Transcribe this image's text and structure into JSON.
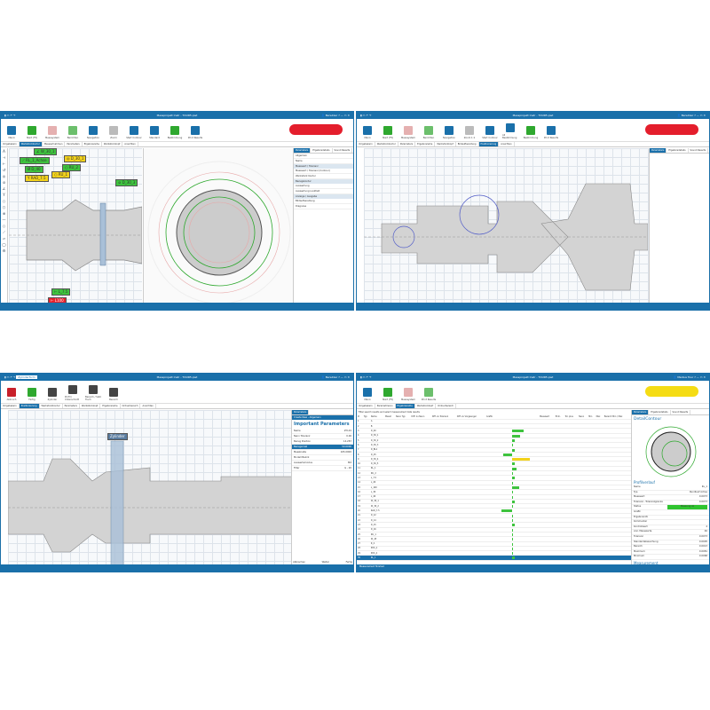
{
  "windows": [
    {
      "title": "Messprojekt Instr - TOUR5.pwt",
      "user": "Benutzer",
      "ribbon": [
        "Menü",
        "Start (F5)",
        "Messsystem",
        "Berichten",
        "Navigation",
        "Zoom",
        "Start Contour",
        "Standard",
        "Bestimmung",
        "Print Results"
      ],
      "tabs": [
        "Vorgabekern",
        "Werkstückkontur",
        "Messaufnahmen",
        "Parameters",
        "Ergebnisreihe",
        "Werkstückkopf",
        "Ansichten"
      ],
      "active_tab": 1,
      "tags": [
        {
          "t": "∠ W_30_1",
          "c": "g"
        },
        {
          "t": "⟋ RL_1_Achse",
          "c": "g"
        },
        {
          "t": "Ø D_40",
          "c": "g"
        },
        {
          "t": "◎ D_30_1",
          "c": "y"
        },
        {
          "t": "○ RU_2",
          "c": "g"
        },
        {
          "t": "○ RU_1",
          "c": "y"
        },
        {
          "t": "Y RAD_7.5",
          "c": "y"
        },
        {
          "t": "⊘ D_30_3",
          "c": "g"
        },
        {
          "t": "⊢ L_7.5",
          "c": "g"
        },
        {
          "t": "⊢ L100",
          "c": "rd"
        }
      ],
      "panel": {
        "tabs": [
          "Parameters",
          "Ergebnisdetails",
          "Sound Results"
        ],
        "sections": [
          "Allgemein",
          "Name",
          "Messwert / Toleranz",
          "Messwert / Toleranz (Contour)",
          "Werkstück Kontur",
          "Bezugskontur",
          "Auswertung",
          "Auswertung Lookfeld",
          "Anzeige / Ausgabe",
          "Bildaufbereitung",
          "Diagnose"
        ]
      }
    },
    {
      "title": "Messprojekt Instr - TOUR5.pwt",
      "user": "Benutzer",
      "ribbon": [
        "Menü",
        "Start (F5)",
        "Messsystem",
        "Berichten",
        "Navigation",
        "Zoom 1:1",
        "Start Contour",
        "All Bestimmung",
        "Bestimmung",
        "Print Results"
      ],
      "tabs": [
        "Vorgabekern",
        "Werkstückkontur",
        "Parameters",
        "Ergebnisreihe",
        "Werkstückkopf",
        "Bildaufbereitung",
        "Positionierung",
        "Ansichten"
      ],
      "active_tab": 6,
      "panel": {
        "tabs": [
          "Parameters",
          "Ergebnisdetails",
          "Sound Results"
        ]
      }
    },
    {
      "title": "Messprojekt Instr - TOUR5.pwt",
      "user": "Benutzer",
      "context_tab": "Zylinderform",
      "ribbon": [
        "Abbruch",
        "Fertig",
        "Zylinder",
        "Profil / Unterschnitt",
        "Bereich / Satz Tisch",
        "Bereich"
      ],
      "tabs": [
        "Vorgabekern",
        "Positionierung",
        "Werkstückkontur",
        "Parameters",
        "Werkstückkopf",
        "Ergebnisreihe",
        "Ordnerbereich",
        "Ansichten"
      ],
      "active_tab": 1,
      "zone_label": "Zylinder",
      "panel": {
        "tab": "Parameters",
        "header": "Create New - Allgemein",
        "title": "Important Parameters",
        "rows": [
          [
            "Name",
            "ZYL01"
          ],
          [
            "Nenn Toleranz",
            "0.00"
          ],
          [
            "Bezug Position",
            "14.287"
          ],
          [
            "Bezugsmaß",
            "50.0000"
          ],
          [
            "Messbreite",
            "165.0000"
          ],
          [
            "Modell Bezirk",
            ""
          ],
          [
            "Auswertemodus",
            "Mit"
          ],
          [
            "Filter",
            "G - 20"
          ]
        ],
        "footer": [
          "Abbrechen",
          "Weiter",
          "Fertig"
        ]
      }
    },
    {
      "title": "Messprojekt Instr - TOUR5.pwt",
      "user": "Markus Tour",
      "ribbon": [
        "Menü",
        "Start (F5)",
        "Messsystem",
        "Print Results"
      ],
      "tabs": [
        "Vorgabekern",
        "Parametrieren",
        "Ergebnisreihe",
        "Werkstückkopf",
        "Ordnerbereich"
      ],
      "active_tab": 2,
      "table": {
        "caption": "Filter search results and select measurement data results",
        "headers": [
          "#",
          "Typ",
          "Name",
          "Messt",
          "Nenn Typ",
          "Diff. zu Nenn",
          "Diff. zu Toleranz",
          "Diff. zu Vorgaenger",
          "Grafik",
          "Messwert",
          "Einh.",
          "Tol. plus",
          "Nenn",
          "Min",
          "Max",
          "Bereich Min / Max"
        ],
        "rows": [
          {
            "n": "1",
            "name": "A",
            "bar": 0.0
          },
          {
            "n": "2",
            "name": "B",
            "bar": 0.0
          },
          {
            "n": "3",
            "name": "D_40",
            "bar": 0.5
          },
          {
            "n": "4",
            "name": "D_30_1",
            "bar": 0.35
          },
          {
            "n": "5",
            "name": "D_30_2",
            "bar": 0.1
          },
          {
            "n": "6",
            "name": "D_30_3",
            "bar": 0.05
          },
          {
            "n": "7",
            "name": "D_BL1",
            "bar": 0.1
          },
          {
            "n": "8",
            "name": "D_25",
            "bar": -0.4
          },
          {
            "n": "9",
            "name": "D_30_4",
            "bar": 0.8
          },
          {
            "n": "10",
            "name": "D_30_5",
            "bar": 0.1
          },
          {
            "n": "11",
            "name": "RL_1",
            "bar": 0.2
          },
          {
            "n": "12",
            "name": "RU_2",
            "bar": 0.05
          },
          {
            "n": "13",
            "name": "L_7.5",
            "bar": 0.1
          },
          {
            "n": "14",
            "name": "L_20",
            "bar": 0.05
          },
          {
            "n": "15",
            "name": "L_100",
            "bar": 0.3
          },
          {
            "n": "16",
            "name": "L_30",
            "bar": 0.05
          },
          {
            "n": "17",
            "name": "L_40",
            "bar": 0.05
          },
          {
            "n": "18",
            "name": "W_30_1",
            "bar": 0.1
          },
          {
            "n": "19",
            "name": "W_30_2",
            "bar": 0.05
          },
          {
            "n": "20",
            "name": "RAD_7.5",
            "bar": -0.5
          },
          {
            "n": "21",
            "name": "D_12",
            "bar": 0.05
          },
          {
            "n": "22",
            "name": "D_14",
            "bar": 0.05
          },
          {
            "n": "23",
            "name": "D_15",
            "bar": 0.1
          },
          {
            "n": "24",
            "name": "D_16",
            "bar": 0.05
          },
          {
            "n": "25",
            "name": "RU_1",
            "bar": 0.05
          },
          {
            "n": "26",
            "name": "W_45",
            "bar": 0.05
          },
          {
            "n": "27",
            "name": "R_2",
            "bar": 0.05
          },
          {
            "n": "28",
            "name": "POS_1",
            "bar": 0.05
          },
          {
            "n": "29",
            "name": "POS_2",
            "bar": 0.05
          },
          {
            "n": "30",
            "name": "RL_1",
            "bar": 0.1,
            "selected": true
          }
        ]
      },
      "panel": {
        "tabs": [
          "Parameters",
          "Ergebnisdetails",
          "Sound Results"
        ],
        "title": "DetailContour",
        "section": "Profilverlauf",
        "rows": [
          [
            "Name",
            "RL_1"
          ],
          [
            "Typ",
            "Rundlauf Achse"
          ],
          [
            "Messwert",
            "0.0073"
          ],
          [
            "Toleranz - Toleranzgrenze",
            "0.0073"
          ],
          [
            "Status",
            "Messung ok"
          ],
          [
            "Grafik",
            ""
          ],
          [
            "Ergebnisinfo",
            ""
          ],
          [
            "Kommentar",
            ""
          ],
          [
            "Kontrollwert",
            "4"
          ],
          [
            "Anz. Messwerte",
            "46"
          ],
          [
            "Toleranz",
            "0.0073"
          ],
          [
            "Standardabweichung",
            "0.0005"
          ],
          [
            "Bereich",
            "0.0013"
          ],
          [
            "Maximum",
            "0.0081"
          ],
          [
            "Minimum",
            "0.0068"
          ]
        ],
        "section2": "Measurement",
        "rows2": [
          [
            "Datum/Uhrzeit",
            "22.07.2019 14:12:57"
          ],
          [
            "Bediener",
            "Markus Tour"
          ]
        ],
        "status_color": "#2fc42f"
      },
      "footer": "Measurement finished"
    }
  ],
  "colors": {
    "accent": "#1a70aa",
    "ok": "#3ec33e",
    "warn": "#f3d21b",
    "error": "#e8202c",
    "logo_red": "#e41e2c",
    "logo_yellow": "#f5dc14"
  }
}
